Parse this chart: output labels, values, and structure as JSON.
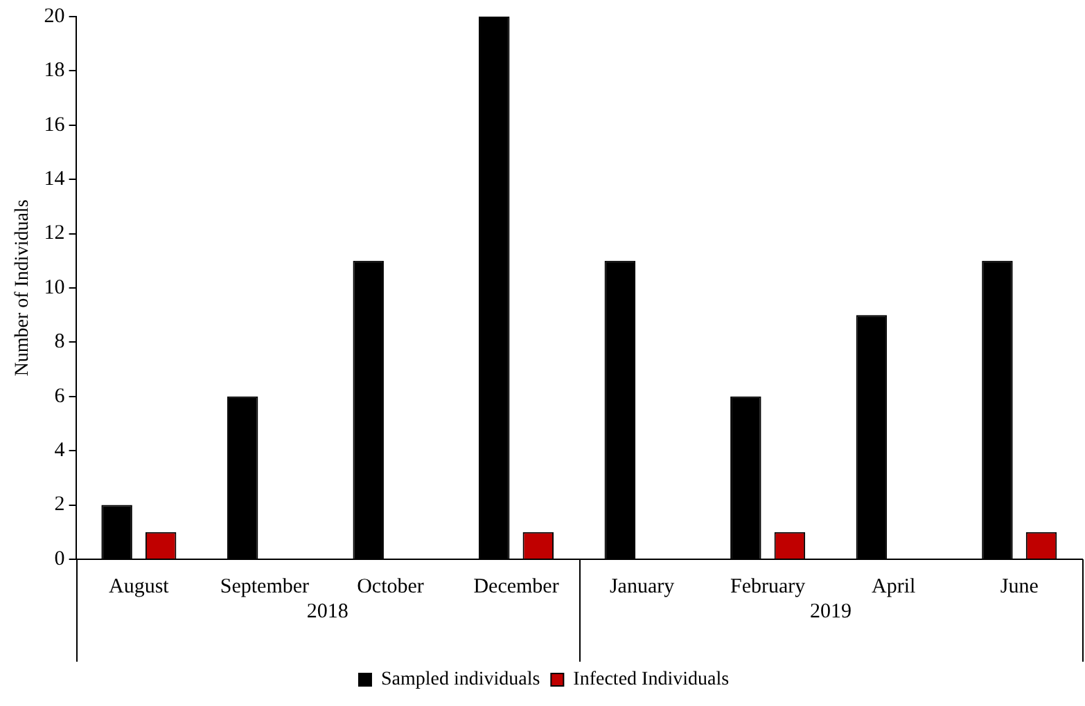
{
  "chart_data": {
    "type": "bar",
    "ylabel": "Number of Individuals",
    "categories": [
      "August",
      "September",
      "October",
      "December",
      "January",
      "February",
      "April",
      "June"
    ],
    "series": [
      {
        "name": "Sampled individuals",
        "color": "#000000",
        "values": [
          2,
          6,
          11,
          20,
          11,
          6,
          9,
          11
        ]
      },
      {
        "name": "Infected Individuals",
        "color": "#c00000",
        "values": [
          1,
          0,
          0,
          1,
          0,
          1,
          0,
          1
        ]
      }
    ],
    "ylim": [
      0,
      20
    ],
    "yticks": [
      0,
      2,
      4,
      6,
      8,
      10,
      12,
      14,
      16,
      18,
      20
    ],
    "grid": false,
    "legend": "bottom",
    "annotations": [
      "2018",
      "2019"
    ]
  }
}
